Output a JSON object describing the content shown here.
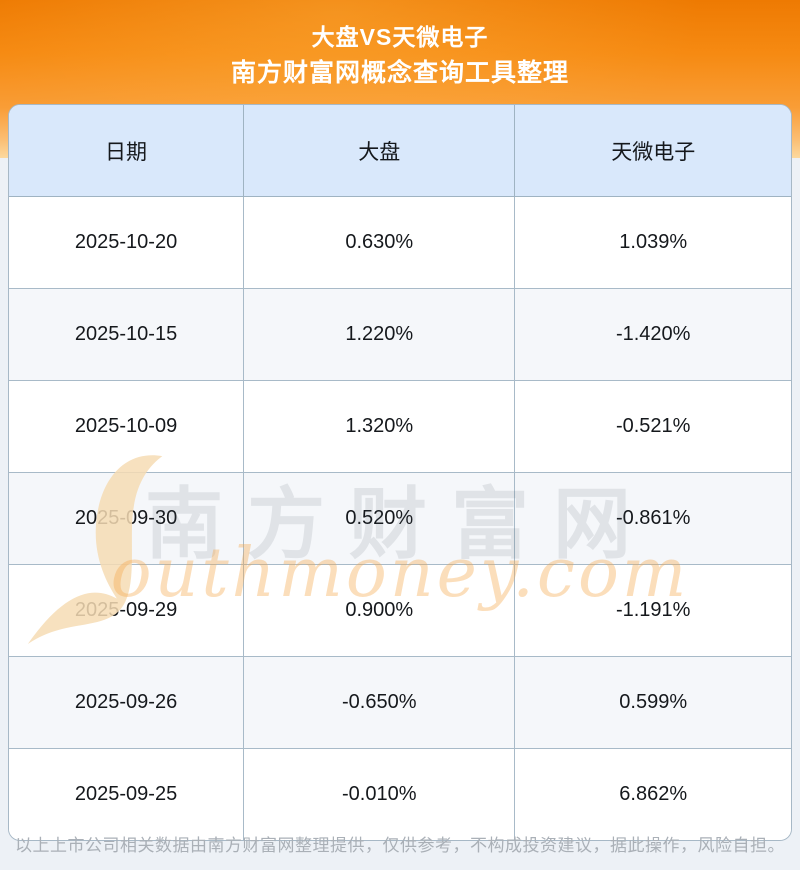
{
  "header": {
    "title_line1": "大盘VS天微电子",
    "title_line2": "南方财富网概念查询工具整理"
  },
  "table": {
    "columns": [
      "日期",
      "大盘",
      "天微电子"
    ],
    "rows": [
      {
        "date": "2025-10-20",
        "market": "0.630%",
        "stock": "1.039%"
      },
      {
        "date": "2025-10-15",
        "market": "1.220%",
        "stock": "-1.420%"
      },
      {
        "date": "2025-10-09",
        "market": "1.320%",
        "stock": "-0.521%"
      },
      {
        "date": "2025-09-30",
        "market": "0.520%",
        "stock": "-0.861%"
      },
      {
        "date": "2025-09-29",
        "market": "0.900%",
        "stock": "-1.191%"
      },
      {
        "date": "2025-09-26",
        "market": "-0.650%",
        "stock": "0.599%"
      },
      {
        "date": "2025-09-25",
        "market": "-0.010%",
        "stock": "6.862%"
      }
    ]
  },
  "watermark": {
    "cjk_text": "南方财富网",
    "latin_text": "outhmoney.com"
  },
  "footer": {
    "disclaimer": "以上上市公司相关数据由南方财富网整理提供，仅供参考，不构成投资建议，据此操作，风险自担。"
  },
  "colors": {
    "accent_orange": "#f68a12",
    "header_row_bg": "#d9e8fb",
    "row_alt_bg": "#f5f7fa",
    "table_border": "#a8bac8",
    "page_bg": "#edf1f6",
    "disclaimer_text": "#aab0b7",
    "watermark_orange": "#f6dcb4"
  }
}
